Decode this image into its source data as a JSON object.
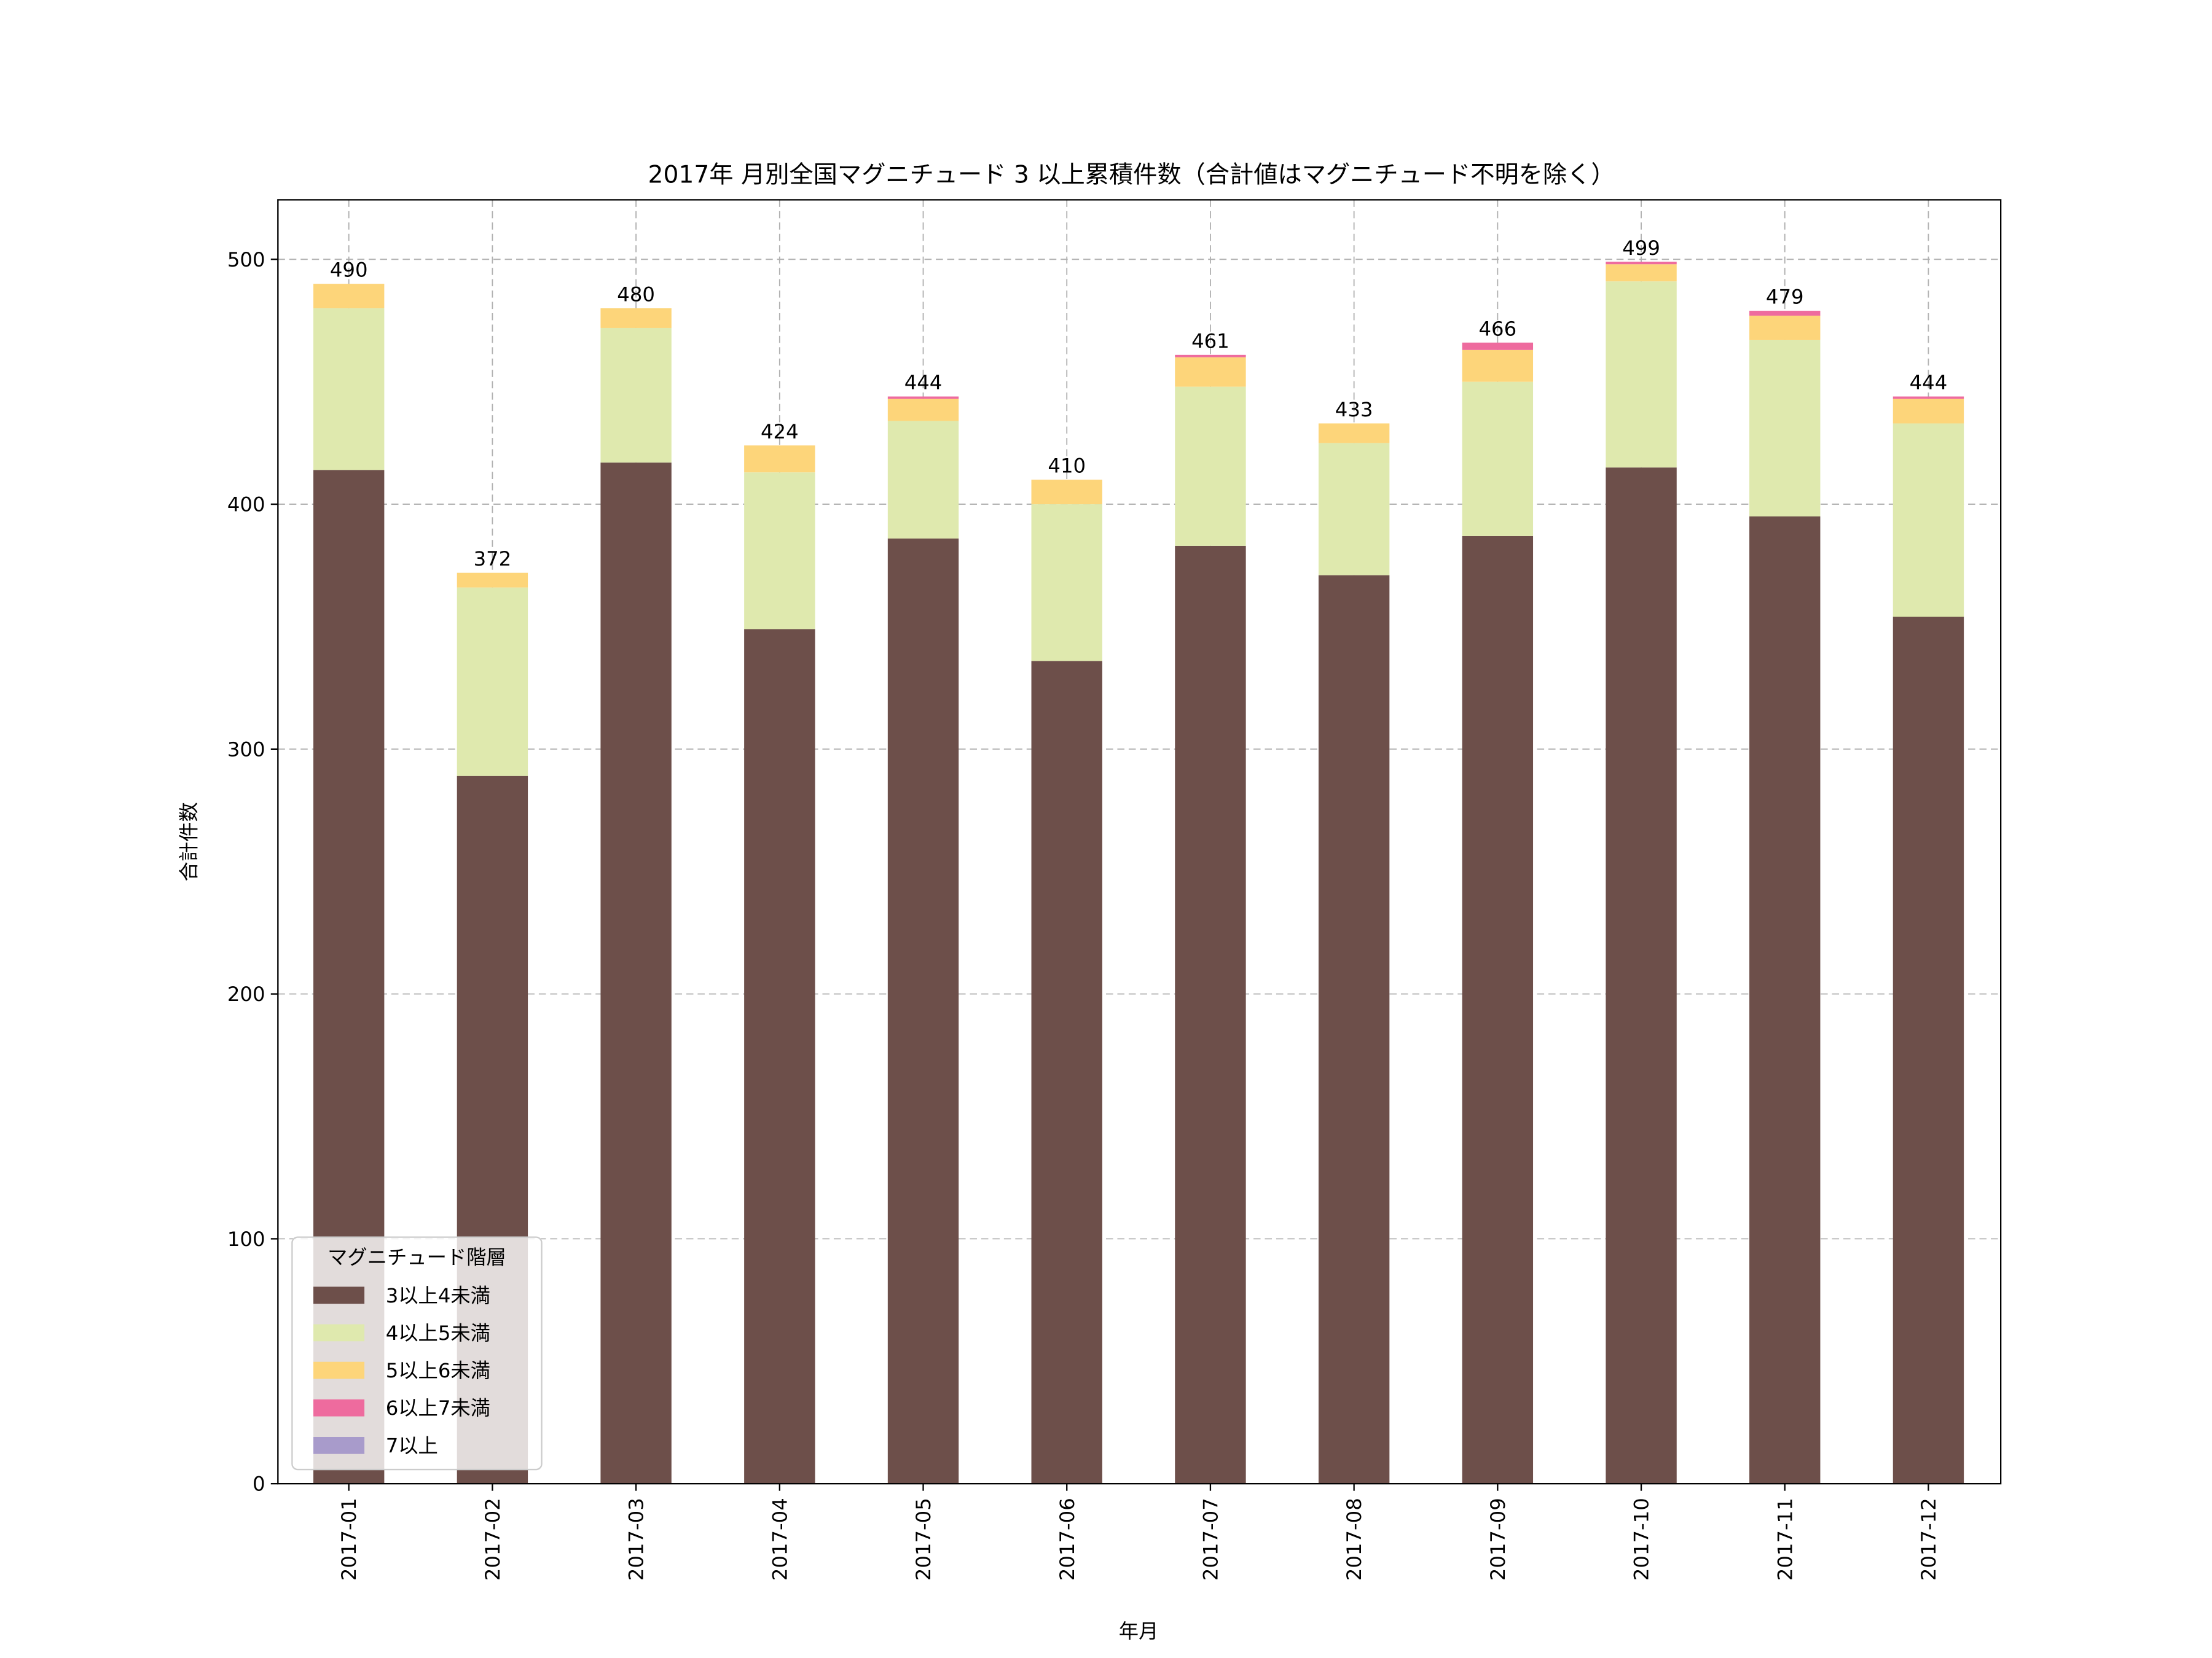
{
  "chart_data": {
    "type": "bar",
    "stacked": true,
    "title": "2017年 月別全国マグニチュード 3 以上累積件数（合計値はマグニチュード不明を除く）",
    "xlabel": "年月",
    "ylabel": "合計件数",
    "ylim": [
      0,
      525
    ],
    "yticks": [
      0,
      100,
      200,
      300,
      400,
      500
    ],
    "grid": true,
    "legend": {
      "title": "マグニチュード階層",
      "placement": "lower-left"
    },
    "categories": [
      "2017-01",
      "2017-02",
      "2017-03",
      "2017-04",
      "2017-05",
      "2017-06",
      "2017-07",
      "2017-08",
      "2017-09",
      "2017-10",
      "2017-11",
      "2017-12"
    ],
    "series": [
      {
        "name": "3以上4未満",
        "color": "#6d4f4a",
        "values": [
          414,
          289,
          417,
          349,
          386,
          336,
          383,
          371,
          387,
          415,
          395,
          354
        ]
      },
      {
        "name": "4以上5未満",
        "color": "#dfe9ae",
        "values": [
          66,
          77,
          55,
          64,
          48,
          64,
          65,
          54,
          63,
          76,
          72,
          79
        ]
      },
      {
        "name": "5以上6未満",
        "color": "#fdd57a",
        "values": [
          10,
          6,
          8,
          11,
          9,
          10,
          12,
          8,
          13,
          7,
          10,
          10
        ]
      },
      {
        "name": "6以上7未満",
        "color": "#ee6b9e",
        "values": [
          0,
          0,
          0,
          0,
          1,
          0,
          1,
          0,
          3,
          1,
          2,
          1
        ]
      },
      {
        "name": "7以上",
        "color": "#a89bcb",
        "values": [
          0,
          0,
          0,
          0,
          0,
          0,
          0,
          0,
          0,
          0,
          0,
          0
        ]
      }
    ],
    "totals": [
      490,
      372,
      480,
      424,
      444,
      410,
      461,
      433,
      466,
      499,
      479,
      444
    ]
  }
}
